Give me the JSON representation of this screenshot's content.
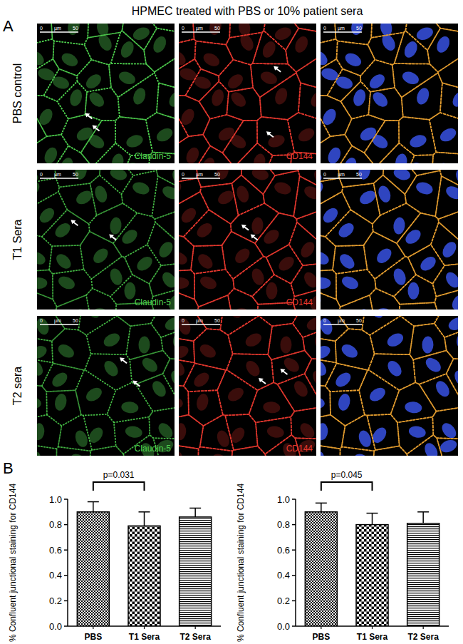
{
  "panel_a": {
    "label": "A",
    "title": "HPMEC treated with PBS or 10% patient sera",
    "rows": [
      "PBS control",
      "T1 Sera",
      "T2 sera"
    ],
    "channels": [
      {
        "name": "Claudin-5",
        "color": "#4fd24f"
      },
      {
        "name": "CD144",
        "color": "#e8392f"
      }
    ],
    "scale_bar": {
      "start": "0",
      "unit": "µm",
      "end": "50"
    }
  },
  "panel_b": {
    "label": "B"
  },
  "chart_data": [
    {
      "type": "bar",
      "ylabel": "% Confluent junctional staining for CD144",
      "categories": [
        "PBS",
        "T1 Sera",
        "T2 Sera"
      ],
      "values": [
        0.9,
        0.79,
        0.86
      ],
      "errors": [
        0.08,
        0.11,
        0.07
      ],
      "color": "#000000",
      "ylim": [
        0,
        1
      ],
      "yticks": [
        {
          "value": 0,
          "label": "0.0"
        },
        {
          "value": 0.2,
          "label": "0.2"
        },
        {
          "value": 0.4,
          "label": "0.4"
        },
        {
          "value": 0.6,
          "label": "0.6"
        },
        {
          "value": 0.8,
          "label": "0.8"
        },
        {
          "value": 1,
          "label": "1.0"
        }
      ],
      "annotations": [
        {
          "text": "p=0.031",
          "categories": [
            "PBS",
            "T1 Sera"
          ]
        }
      ]
    },
    {
      "type": "bar",
      "ylabel": "% Confluent junctional staining for CD144",
      "categories": [
        "PBS",
        "T1 Sera",
        "T2 Sera"
      ],
      "values": [
        0.9,
        0.8,
        0.81
      ],
      "errors": [
        0.07,
        0.09,
        0.09
      ],
      "color": "#000000",
      "ylim": [
        0,
        1
      ],
      "yticks": [
        {
          "value": 0,
          "label": "0.0"
        },
        {
          "value": 0.2,
          "label": "0.2"
        },
        {
          "value": 0.4,
          "label": "0.4"
        },
        {
          "value": 0.6,
          "label": "0.6"
        },
        {
          "value": 0.8,
          "label": "0.8"
        },
        {
          "value": 1,
          "label": "1.0"
        }
      ],
      "annotations": [
        {
          "text": "p=0.045",
          "categories": [
            "PBS",
            "T1 Sera"
          ]
        }
      ]
    }
  ]
}
